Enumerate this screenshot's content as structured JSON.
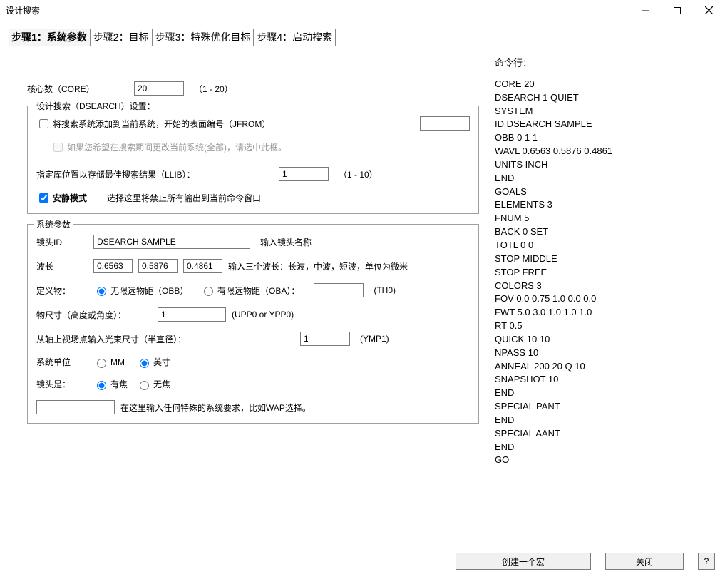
{
  "window": {
    "title": "设计搜索"
  },
  "tabs": {
    "t1": "步骤1：系统参数",
    "t2": "步骤2：目标",
    "t3": "步骤3：特殊优化目标",
    "t4": "步骤4：启动搜索"
  },
  "core": {
    "label": "核心数（CORE）",
    "value": "20",
    "range": "（1 - 20）"
  },
  "dsearch": {
    "legend": "设计搜索（DSEARCH）设置：",
    "jfrom_label": "将搜索系统添加到当前系统，开始的表面编号（JFROM）",
    "jfrom_value": "",
    "jfrom_checked": false,
    "allmod_label": "如果您希望在搜索期间更改当前系统(全部)，请选中此框。",
    "llib_label": "指定库位置以存储最佳搜索结果（LLIB）：",
    "llib_value": "1",
    "llib_range": "（1 - 10）",
    "quiet_checked": true,
    "quiet_label": "安静模式",
    "quiet_desc": "选择这里将禁止所有输出到当前命令窗口"
  },
  "sys": {
    "legend": "系统参数",
    "lens_id_label": "镜头ID",
    "lens_id_value": "DSEARCH SAMPLE",
    "lens_id_hint": "输入镜头名称",
    "wav_label": "波长",
    "wav1": "0.6563",
    "wav2": "0.5876",
    "wav3": "0.4861",
    "wav_hint": "输入三个波长：长波，中波，短波，单位为微米",
    "objdef_label": "定义物：",
    "obb_label": "无限远物距（OBB）",
    "oba_label": "有限远物距（OBA）：",
    "th0_value": "",
    "th0_hint": "(TH0)",
    "objsize_label": "物尺寸（高度或角度）：",
    "objsize_value": "1",
    "objsize_hint": "(UPP0 or YPP0)",
    "ymp1_label": "从轴上视场点输入光束尺寸（半直径）：",
    "ymp1_value": "1",
    "ymp1_hint": "(YMP1)",
    "units_label": "系统单位",
    "units_mm": "MM",
    "units_inch": "英寸",
    "lensis_label": "镜头是：",
    "lensis_focal": "有焦",
    "lensis_afocal": "无焦",
    "special_value": "",
    "special_hint": "在这里输入任何特殊的系统要求，比如WAP选择。"
  },
  "right": {
    "header": "命令行：",
    "lines": [
      "CORE 20",
      "DSEARCH 1 QUIET",
      "SYSTEM",
      "ID DSEARCH SAMPLE",
      "OBB 0 1 1",
      "WAVL 0.6563 0.5876 0.4861",
      "UNITS INCH",
      "END",
      "GOALS",
      "ELEMENTS 3",
      "FNUM 5",
      "BACK 0 SET",
      "TOTL 0 0",
      "STOP MIDDLE",
      "STOP FREE",
      "COLORS 3",
      "FOV 0.0 0.75 1.0 0.0 0.0",
      "FWT 5.0 3.0 1.0 1.0 1.0",
      "RT 0.5",
      "QUICK 10 10",
      "NPASS 10",
      "ANNEAL 200 20 Q 10",
      "SNAPSHOT 10",
      "END",
      "SPECIAL PANT",
      "END",
      "SPECIAL AANT",
      "END",
      "GO"
    ]
  },
  "buttons": {
    "create_macro": "创建一个宏",
    "close": "关闭",
    "help": "?"
  }
}
